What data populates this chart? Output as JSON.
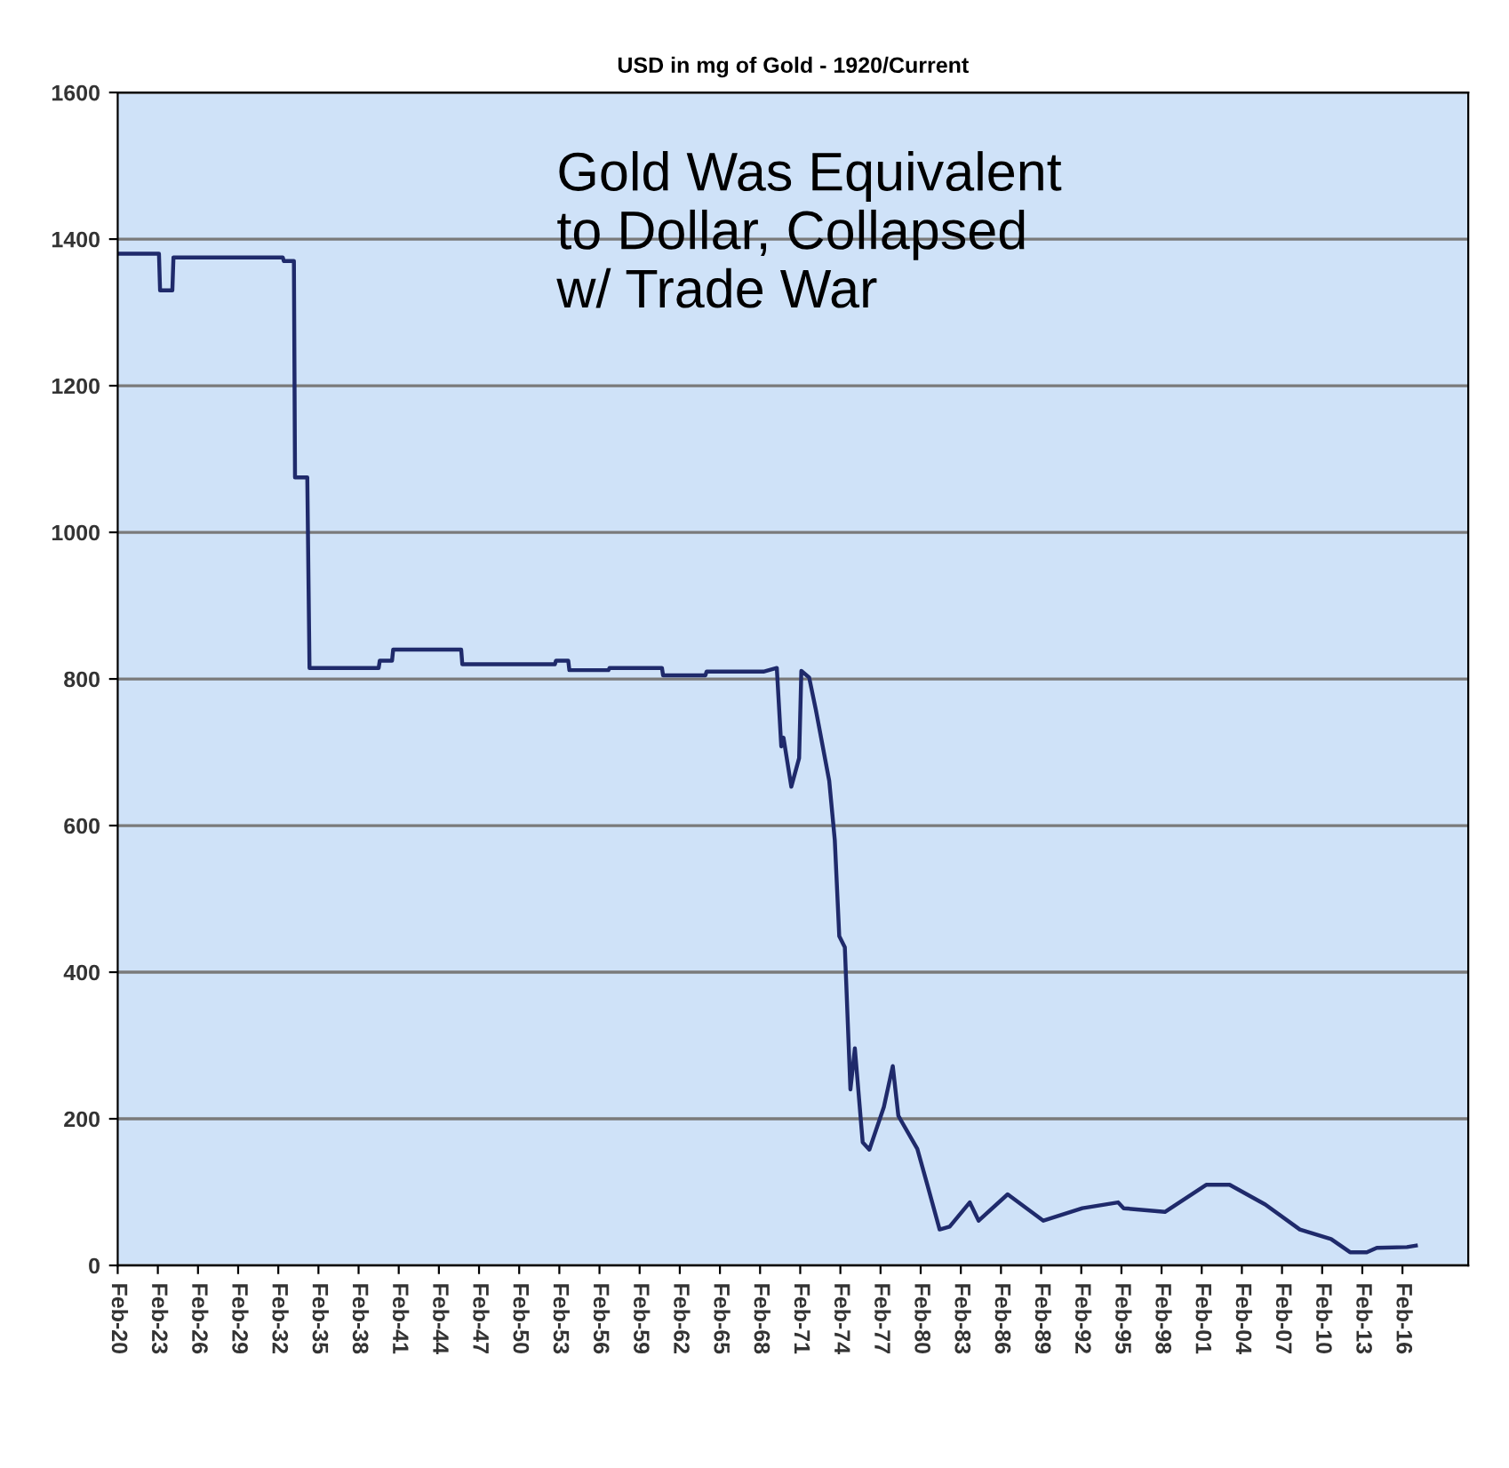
{
  "chart_data": {
    "type": "line",
    "title": "USD in mg of Gold - 1920/Current",
    "annotations": [
      "Gold Was Equivalent\nto Dollar, Collapsed\nw/ Trade War"
    ],
    "x": [
      "1920-02",
      "1923-03",
      "1923-04",
      "1924-03",
      "1924-04",
      "1932-06",
      "1932-07",
      "1933-04",
      "1933-05",
      "1934-04",
      "1934-06",
      "1939-08",
      "1939-09",
      "1940-08",
      "1940-09",
      "1945-10",
      "1945-11",
      "1952-10",
      "1952-11",
      "1953-10",
      "1953-11",
      "1956-10",
      "1956-11",
      "1960-10",
      "1960-11",
      "1964-01",
      "1964-02",
      "1968-05",
      "1969-05",
      "1969-09",
      "1969-11",
      "1970-06",
      "1971-01",
      "1971-03",
      "1971-10",
      "1972-04",
      "1973-04",
      "1973-09",
      "1974-01",
      "1974-06",
      "1974-11",
      "1975-03",
      "1975-10",
      "1976-04",
      "1977-05",
      "1978-01",
      "1978-06",
      "1979-11",
      "1980-08",
      "1981-07",
      "1982-04",
      "1983-10",
      "1984-06",
      "1986-08",
      "1989-04",
      "1992-03",
      "1994-11",
      "1995-04",
      "1998-05",
      "2001-06",
      "2003-03",
      "2005-11",
      "2008-06",
      "2010-10",
      "2012-03",
      "2013-06",
      "2014-03",
      "2016-06",
      "2017-02"
    ],
    "series": [
      {
        "color": "#1f2a6b",
        "values": [
          1380,
          1380,
          1330,
          1330,
          1375,
          1375,
          1370,
          1370,
          1075,
          1075,
          815,
          815,
          825,
          825,
          840,
          840,
          820,
          820,
          825,
          825,
          812,
          812,
          815,
          815,
          805,
          805,
          810,
          810,
          815,
          708,
          720,
          653,
          692,
          811,
          802,
          758,
          661,
          580,
          449,
          434,
          240,
          296,
          168,
          158,
          216,
          272,
          204,
          159,
          110,
          49,
          53,
          86,
          61,
          97,
          61,
          78,
          86,
          78,
          73,
          110,
          110,
          83,
          49,
          36,
          18,
          18,
          24,
          25,
          27
        ]
      }
    ],
    "xlim": [
      "1920-02",
      "2021-01"
    ],
    "xticks": [
      {
        "value": "1920-02",
        "label": "Feb-20"
      },
      {
        "value": "1923-02",
        "label": "Feb-23"
      },
      {
        "value": "1926-02",
        "label": "Feb-26"
      },
      {
        "value": "1929-02",
        "label": "Feb-29"
      },
      {
        "value": "1932-02",
        "label": "Feb-32"
      },
      {
        "value": "1935-02",
        "label": "Feb-35"
      },
      {
        "value": "1938-02",
        "label": "Feb-38"
      },
      {
        "value": "1941-02",
        "label": "Feb-41"
      },
      {
        "value": "1944-02",
        "label": "Feb-44"
      },
      {
        "value": "1947-02",
        "label": "Feb-47"
      },
      {
        "value": "1950-02",
        "label": "Feb-50"
      },
      {
        "value": "1953-02",
        "label": "Feb-53"
      },
      {
        "value": "1956-02",
        "label": "Feb-56"
      },
      {
        "value": "1959-02",
        "label": "Feb-59"
      },
      {
        "value": "1962-02",
        "label": "Feb-62"
      },
      {
        "value": "1965-02",
        "label": "Feb-65"
      },
      {
        "value": "1968-02",
        "label": "Feb-68"
      },
      {
        "value": "1971-02",
        "label": "Feb-71"
      },
      {
        "value": "1974-02",
        "label": "Feb-74"
      },
      {
        "value": "1977-02",
        "label": "Feb-77"
      },
      {
        "value": "1980-02",
        "label": "Feb-80"
      },
      {
        "value": "1983-02",
        "label": "Feb-83"
      },
      {
        "value": "1986-02",
        "label": "Feb-86"
      },
      {
        "value": "1989-02",
        "label": "Feb-89"
      },
      {
        "value": "1992-02",
        "label": "Feb-92"
      },
      {
        "value": "1995-02",
        "label": "Feb-95"
      },
      {
        "value": "1998-02",
        "label": "Feb-98"
      },
      {
        "value": "2001-02",
        "label": "Feb-01"
      },
      {
        "value": "2004-02",
        "label": "Feb-04"
      },
      {
        "value": "2007-02",
        "label": "Feb-07"
      },
      {
        "value": "2010-02",
        "label": "Feb-10"
      },
      {
        "value": "2013-02",
        "label": "Feb-13"
      },
      {
        "value": "2016-02",
        "label": "Feb-16"
      }
    ],
    "ylim": [
      0,
      1600
    ],
    "yticks": [
      0,
      200,
      400,
      600,
      800,
      1000,
      1200,
      1400,
      1600
    ],
    "grid": "y",
    "legend": false,
    "marker": "none",
    "line_style": "solid"
  }
}
